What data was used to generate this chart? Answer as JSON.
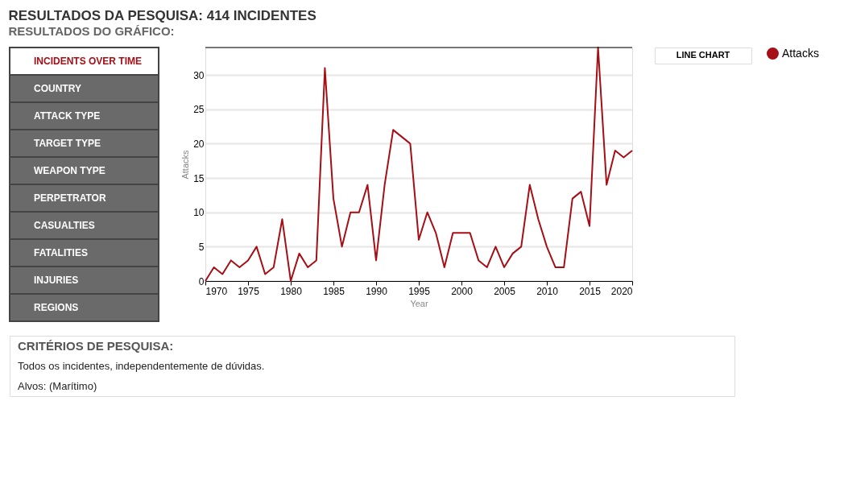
{
  "chart_data": {
    "type": "line",
    "title": "RESULTADOS DA PESQUISA: 414 INCIDENTES",
    "subtitle": "RESULTADOS DO GRÁFICO:",
    "xlabel": "Year",
    "ylabel": "Attacks",
    "x": [
      1970,
      1971,
      1972,
      1973,
      1974,
      1975,
      1976,
      1977,
      1978,
      1979,
      1980,
      1981,
      1982,
      1983,
      1984,
      1985,
      1986,
      1987,
      1988,
      1989,
      1990,
      1991,
      1992,
      1993,
      1994,
      1995,
      1996,
      1997,
      1998,
      1999,
      2000,
      2001,
      2002,
      2003,
      2004,
      2005,
      2006,
      2007,
      2008,
      2009,
      2010,
      2011,
      2012,
      2013,
      2014,
      2015,
      2016,
      2017,
      2018,
      2019,
      2020
    ],
    "series": [
      {
        "name": "Attacks",
        "color": "#a50f15",
        "values": [
          0,
          2,
          1,
          3,
          2,
          3,
          5,
          1,
          2,
          9,
          0,
          4,
          2,
          3,
          31,
          12,
          5,
          10,
          10,
          14,
          3,
          14,
          22,
          21,
          20,
          6,
          10,
          7,
          2,
          7,
          7,
          7,
          3,
          2,
          5,
          2,
          4,
          5,
          14,
          9,
          5,
          2,
          2,
          12,
          13,
          8,
          34,
          14,
          19,
          18,
          19
        ]
      }
    ],
    "xlim": [
      1970,
      2020
    ],
    "xticks": [
      1970,
      1975,
      1980,
      1985,
      1990,
      1995,
      2000,
      2005,
      2010,
      2015,
      2020
    ],
    "ylim": [
      0,
      34
    ],
    "yticks": [
      0,
      5,
      10,
      15,
      20,
      25,
      30
    ],
    "grid": "y",
    "legend": "right",
    "marker": "none",
    "line_style": "solid",
    "annotations": [
      "INCIDENTS OVER TIME",
      "COUNTRY",
      "ATTACK TYPE",
      "TARGET TYPE",
      "WEAPON TYPE",
      "PERPETRATOR",
      "CASUALTIES",
      "FATALITIES",
      "INJURIES",
      "REGIONS",
      "LINE CHART",
      "CRITÉRIOS DE PESQUISA:",
      "Todos os incidentes, independentemente de dúvidas.",
      "Alvos: (Marítimo)"
    ]
  }
}
